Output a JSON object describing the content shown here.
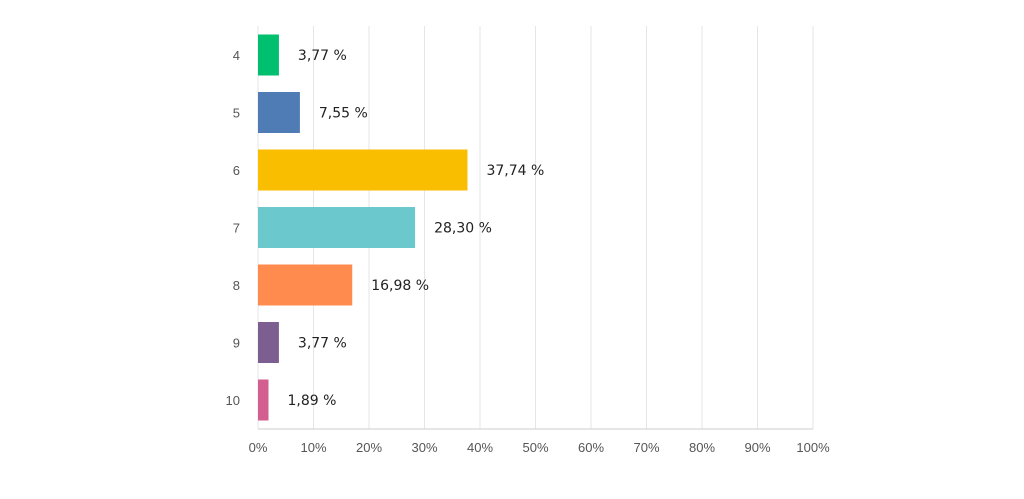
{
  "chart_data": {
    "type": "bar",
    "orientation": "horizontal",
    "categories": [
      "4",
      "5",
      "6",
      "7",
      "8",
      "9",
      "10"
    ],
    "values": [
      3.77,
      7.55,
      37.74,
      28.3,
      16.98,
      3.77,
      1.89
    ],
    "value_labels": [
      "3,77 %",
      "7,55 %",
      "37,74 %",
      "28,30 %",
      "16,98 %",
      "3,77 %",
      "1,89 %"
    ],
    "colors": [
      "#00BF6F",
      "#507CB6",
      "#F9BE00",
      "#6BC8CD",
      "#FF8B4F",
      "#7D5E90",
      "#D25F90"
    ],
    "xlim": [
      0,
      100
    ],
    "x_ticks": [
      0,
      10,
      20,
      30,
      40,
      50,
      60,
      70,
      80,
      90,
      100
    ],
    "x_tick_labels": [
      "0%",
      "10%",
      "20%",
      "30%",
      "40%",
      "50%",
      "60%",
      "70%",
      "80%",
      "90%",
      "100%"
    ],
    "grid": true,
    "title": "",
    "xlabel": "",
    "ylabel": ""
  }
}
